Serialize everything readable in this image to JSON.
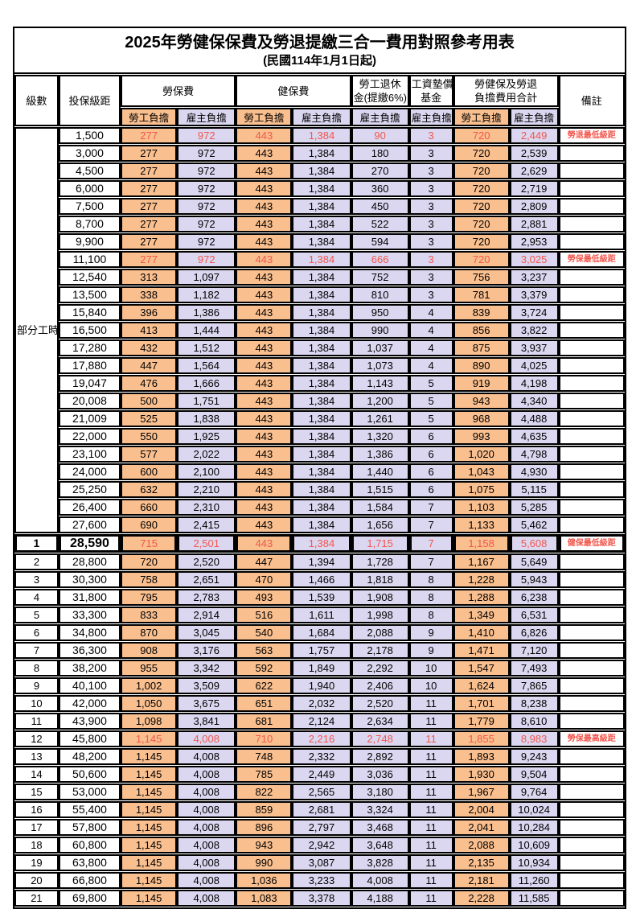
{
  "title": "2025年勞健保保費及勞退提繳三合一費用對照參考用表",
  "subtitle": "(民國114年1月1日起)",
  "header": {
    "level": "級數",
    "bracket": "投保級距",
    "labor_insurance": "勞保費",
    "health_insurance": "健保費",
    "pension_line1": "勞工退休",
    "pension_line2": "金(提繳6%)",
    "fund_line1": "工資墊償",
    "fund_line2": "基金",
    "total_line1": "勞健保及勞退",
    "total_line2": "負擔費用合計",
    "remark": "備註",
    "employee_share": "勞工負擔",
    "employer_share": "雇主負擔"
  },
  "part_time_label": "部分工時",
  "colors": {
    "employee_col_bg": "#F9BF8F",
    "employer_col_bg": "#DBD7F0",
    "highlight_text": "#F2574D",
    "border": "#000000"
  },
  "rows": [
    {
      "level": "",
      "bracket": "1,500",
      "labor_emp": "277",
      "labor_er": "972",
      "health_emp": "443",
      "health_er": "1,384",
      "pension": "90",
      "fund": "3",
      "total_emp": "720",
      "total_er": "2,449",
      "note": "勞退最低級距",
      "red": true
    },
    {
      "level": "",
      "bracket": "3,000",
      "labor_emp": "277",
      "labor_er": "972",
      "health_emp": "443",
      "health_er": "1,384",
      "pension": "180",
      "fund": "3",
      "total_emp": "720",
      "total_er": "2,539",
      "note": ""
    },
    {
      "level": "",
      "bracket": "4,500",
      "labor_emp": "277",
      "labor_er": "972",
      "health_emp": "443",
      "health_er": "1,384",
      "pension": "270",
      "fund": "3",
      "total_emp": "720",
      "total_er": "2,629",
      "note": ""
    },
    {
      "level": "",
      "bracket": "6,000",
      "labor_emp": "277",
      "labor_er": "972",
      "health_emp": "443",
      "health_er": "1,384",
      "pension": "360",
      "fund": "3",
      "total_emp": "720",
      "total_er": "2,719",
      "note": ""
    },
    {
      "level": "",
      "bracket": "7,500",
      "labor_emp": "277",
      "labor_er": "972",
      "health_emp": "443",
      "health_er": "1,384",
      "pension": "450",
      "fund": "3",
      "total_emp": "720",
      "total_er": "2,809",
      "note": ""
    },
    {
      "level": "",
      "bracket": "8,700",
      "labor_emp": "277",
      "labor_er": "972",
      "health_emp": "443",
      "health_er": "1,384",
      "pension": "522",
      "fund": "3",
      "total_emp": "720",
      "total_er": "2,881",
      "note": ""
    },
    {
      "level": "",
      "bracket": "9,900",
      "labor_emp": "277",
      "labor_er": "972",
      "health_emp": "443",
      "health_er": "1,384",
      "pension": "594",
      "fund": "3",
      "total_emp": "720",
      "total_er": "2,953",
      "note": ""
    },
    {
      "level": "",
      "bracket": "11,100",
      "labor_emp": "277",
      "labor_er": "972",
      "health_emp": "443",
      "health_er": "1,384",
      "pension": "666",
      "fund": "3",
      "total_emp": "720",
      "total_er": "3,025",
      "note": "勞保最低級距",
      "red": true
    },
    {
      "level": "",
      "bracket": "12,540",
      "labor_emp": "313",
      "labor_er": "1,097",
      "health_emp": "443",
      "health_er": "1,384",
      "pension": "752",
      "fund": "3",
      "total_emp": "756",
      "total_er": "3,237",
      "note": ""
    },
    {
      "level": "",
      "bracket": "13,500",
      "labor_emp": "338",
      "labor_er": "1,182",
      "health_emp": "443",
      "health_er": "1,384",
      "pension": "810",
      "fund": "3",
      "total_emp": "781",
      "total_er": "3,379",
      "note": ""
    },
    {
      "level": "",
      "bracket": "15,840",
      "labor_emp": "396",
      "labor_er": "1,386",
      "health_emp": "443",
      "health_er": "1,384",
      "pension": "950",
      "fund": "4",
      "total_emp": "839",
      "total_er": "3,724",
      "note": ""
    },
    {
      "level": "",
      "bracket": "16,500",
      "labor_emp": "413",
      "labor_er": "1,444",
      "health_emp": "443",
      "health_er": "1,384",
      "pension": "990",
      "fund": "4",
      "total_emp": "856",
      "total_er": "3,822",
      "note": ""
    },
    {
      "level": "",
      "bracket": "17,280",
      "labor_emp": "432",
      "labor_er": "1,512",
      "health_emp": "443",
      "health_er": "1,384",
      "pension": "1,037",
      "fund": "4",
      "total_emp": "875",
      "total_er": "3,937",
      "note": ""
    },
    {
      "level": "",
      "bracket": "17,880",
      "labor_emp": "447",
      "labor_er": "1,564",
      "health_emp": "443",
      "health_er": "1,384",
      "pension": "1,073",
      "fund": "4",
      "total_emp": "890",
      "total_er": "4,025",
      "note": ""
    },
    {
      "level": "",
      "bracket": "19,047",
      "labor_emp": "476",
      "labor_er": "1,666",
      "health_emp": "443",
      "health_er": "1,384",
      "pension": "1,143",
      "fund": "5",
      "total_emp": "919",
      "total_er": "4,198",
      "note": ""
    },
    {
      "level": "",
      "bracket": "20,008",
      "labor_emp": "500",
      "labor_er": "1,751",
      "health_emp": "443",
      "health_er": "1,384",
      "pension": "1,200",
      "fund": "5",
      "total_emp": "943",
      "total_er": "4,340",
      "note": ""
    },
    {
      "level": "",
      "bracket": "21,009",
      "labor_emp": "525",
      "labor_er": "1,838",
      "health_emp": "443",
      "health_er": "1,384",
      "pension": "1,261",
      "fund": "5",
      "total_emp": "968",
      "total_er": "4,488",
      "note": ""
    },
    {
      "level": "",
      "bracket": "22,000",
      "labor_emp": "550",
      "labor_er": "1,925",
      "health_emp": "443",
      "health_er": "1,384",
      "pension": "1,320",
      "fund": "6",
      "total_emp": "993",
      "total_er": "4,635",
      "note": ""
    },
    {
      "level": "",
      "bracket": "23,100",
      "labor_emp": "577",
      "labor_er": "2,022",
      "health_emp": "443",
      "health_er": "1,384",
      "pension": "1,386",
      "fund": "6",
      "total_emp": "1,020",
      "total_er": "4,798",
      "note": ""
    },
    {
      "level": "",
      "bracket": "24,000",
      "labor_emp": "600",
      "labor_er": "2,100",
      "health_emp": "443",
      "health_er": "1,384",
      "pension": "1,440",
      "fund": "6",
      "total_emp": "1,043",
      "total_er": "4,930",
      "note": ""
    },
    {
      "level": "",
      "bracket": "25,250",
      "labor_emp": "632",
      "labor_er": "2,210",
      "health_emp": "443",
      "health_er": "1,384",
      "pension": "1,515",
      "fund": "6",
      "total_emp": "1,075",
      "total_er": "5,115",
      "note": ""
    },
    {
      "level": "",
      "bracket": "26,400",
      "labor_emp": "660",
      "labor_er": "2,310",
      "health_emp": "443",
      "health_er": "1,384",
      "pension": "1,584",
      "fund": "7",
      "total_emp": "1,103",
      "total_er": "5,285",
      "note": ""
    },
    {
      "level": "",
      "bracket": "27,600",
      "labor_emp": "690",
      "labor_er": "2,415",
      "health_emp": "443",
      "health_er": "1,384",
      "pension": "1,656",
      "fund": "7",
      "total_emp": "1,133",
      "total_er": "5,462",
      "note": ""
    },
    {
      "level": "1",
      "bracket": "28,590",
      "labor_emp": "715",
      "labor_er": "2,501",
      "health_emp": "443",
      "health_er": "1,384",
      "pension": "1,715",
      "fund": "7",
      "total_emp": "1,158",
      "total_er": "5,608",
      "note": "健保最低級距",
      "red": true,
      "highlight": true
    },
    {
      "level": "2",
      "bracket": "28,800",
      "labor_emp": "720",
      "labor_er": "2,520",
      "health_emp": "447",
      "health_er": "1,394",
      "pension": "1,728",
      "fund": "7",
      "total_emp": "1,167",
      "total_er": "5,649",
      "note": ""
    },
    {
      "level": "3",
      "bracket": "30,300",
      "labor_emp": "758",
      "labor_er": "2,651",
      "health_emp": "470",
      "health_er": "1,466",
      "pension": "1,818",
      "fund": "8",
      "total_emp": "1,228",
      "total_er": "5,943",
      "note": ""
    },
    {
      "level": "4",
      "bracket": "31,800",
      "labor_emp": "795",
      "labor_er": "2,783",
      "health_emp": "493",
      "health_er": "1,539",
      "pension": "1,908",
      "fund": "8",
      "total_emp": "1,288",
      "total_er": "6,238",
      "note": ""
    },
    {
      "level": "5",
      "bracket": "33,300",
      "labor_emp": "833",
      "labor_er": "2,914",
      "health_emp": "516",
      "health_er": "1,611",
      "pension": "1,998",
      "fund": "8",
      "total_emp": "1,349",
      "total_er": "6,531",
      "note": ""
    },
    {
      "level": "6",
      "bracket": "34,800",
      "labor_emp": "870",
      "labor_er": "3,045",
      "health_emp": "540",
      "health_er": "1,684",
      "pension": "2,088",
      "fund": "9",
      "total_emp": "1,410",
      "total_er": "6,826",
      "note": ""
    },
    {
      "level": "7",
      "bracket": "36,300",
      "labor_emp": "908",
      "labor_er": "3,176",
      "health_emp": "563",
      "health_er": "1,757",
      "pension": "2,178",
      "fund": "9",
      "total_emp": "1,471",
      "total_er": "7,120",
      "note": ""
    },
    {
      "level": "8",
      "bracket": "38,200",
      "labor_emp": "955",
      "labor_er": "3,342",
      "health_emp": "592",
      "health_er": "1,849",
      "pension": "2,292",
      "fund": "10",
      "total_emp": "1,547",
      "total_er": "7,493",
      "note": ""
    },
    {
      "level": "9",
      "bracket": "40,100",
      "labor_emp": "1,002",
      "labor_er": "3,509",
      "health_emp": "622",
      "health_er": "1,940",
      "pension": "2,406",
      "fund": "10",
      "total_emp": "1,624",
      "total_er": "7,865",
      "note": ""
    },
    {
      "level": "10",
      "bracket": "42,000",
      "labor_emp": "1,050",
      "labor_er": "3,675",
      "health_emp": "651",
      "health_er": "2,032",
      "pension": "2,520",
      "fund": "11",
      "total_emp": "1,701",
      "total_er": "8,238",
      "note": ""
    },
    {
      "level": "11",
      "bracket": "43,900",
      "labor_emp": "1,098",
      "labor_er": "3,841",
      "health_emp": "681",
      "health_er": "2,124",
      "pension": "2,634",
      "fund": "11",
      "total_emp": "1,779",
      "total_er": "8,610",
      "note": ""
    },
    {
      "level": "12",
      "bracket": "45,800",
      "labor_emp": "1,145",
      "labor_er": "4,008",
      "health_emp": "710",
      "health_er": "2,216",
      "pension": "2,748",
      "fund": "11",
      "total_emp": "1,855",
      "total_er": "8,983",
      "note": "勞保最高級距",
      "red": true
    },
    {
      "level": "13",
      "bracket": "48,200",
      "labor_emp": "1,145",
      "labor_er": "4,008",
      "health_emp": "748",
      "health_er": "2,332",
      "pension": "2,892",
      "fund": "11",
      "total_emp": "1,893",
      "total_er": "9,243",
      "note": ""
    },
    {
      "level": "14",
      "bracket": "50,600",
      "labor_emp": "1,145",
      "labor_er": "4,008",
      "health_emp": "785",
      "health_er": "2,449",
      "pension": "3,036",
      "fund": "11",
      "total_emp": "1,930",
      "total_er": "9,504",
      "note": ""
    },
    {
      "level": "15",
      "bracket": "53,000",
      "labor_emp": "1,145",
      "labor_er": "4,008",
      "health_emp": "822",
      "health_er": "2,565",
      "pension": "3,180",
      "fund": "11",
      "total_emp": "1,967",
      "total_er": "9,764",
      "note": ""
    },
    {
      "level": "16",
      "bracket": "55,400",
      "labor_emp": "1,145",
      "labor_er": "4,008",
      "health_emp": "859",
      "health_er": "2,681",
      "pension": "3,324",
      "fund": "11",
      "total_emp": "2,004",
      "total_er": "10,024",
      "note": ""
    },
    {
      "level": "17",
      "bracket": "57,800",
      "labor_emp": "1,145",
      "labor_er": "4,008",
      "health_emp": "896",
      "health_er": "2,797",
      "pension": "3,468",
      "fund": "11",
      "total_emp": "2,041",
      "total_er": "10,284",
      "note": ""
    },
    {
      "level": "18",
      "bracket": "60,800",
      "labor_emp": "1,145",
      "labor_er": "4,008",
      "health_emp": "943",
      "health_er": "2,942",
      "pension": "3,648",
      "fund": "11",
      "total_emp": "2,088",
      "total_er": "10,609",
      "note": ""
    },
    {
      "level": "19",
      "bracket": "63,800",
      "labor_emp": "1,145",
      "labor_er": "4,008",
      "health_emp": "990",
      "health_er": "3,087",
      "pension": "3,828",
      "fund": "11",
      "total_emp": "2,135",
      "total_er": "10,934",
      "note": ""
    },
    {
      "level": "20",
      "bracket": "66,800",
      "labor_emp": "1,145",
      "labor_er": "4,008",
      "health_emp": "1,036",
      "health_er": "3,233",
      "pension": "4,008",
      "fund": "11",
      "total_emp": "2,181",
      "total_er": "11,260",
      "note": ""
    },
    {
      "level": "21",
      "bracket": "69,800",
      "labor_emp": "1,145",
      "labor_er": "4,008",
      "health_emp": "1,083",
      "health_er": "3,378",
      "pension": "4,188",
      "fund": "11",
      "total_emp": "2,228",
      "total_er": "11,585",
      "note": ""
    }
  ]
}
